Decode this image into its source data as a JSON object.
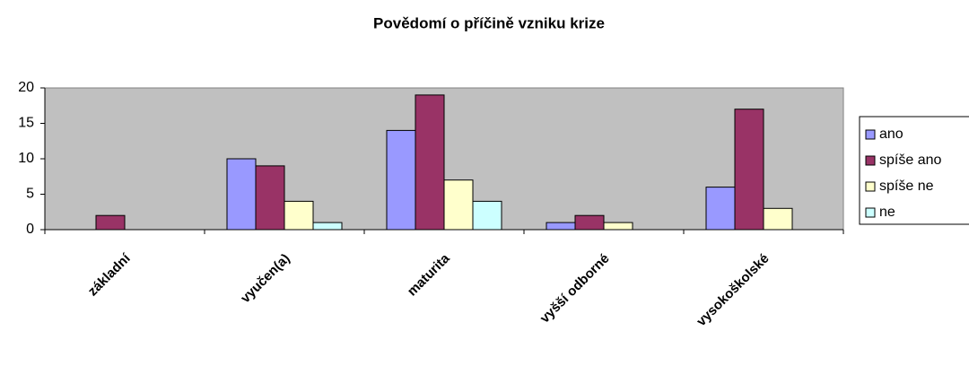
{
  "chart_data": {
    "type": "bar",
    "title": "Povědomí o příčině vzniku krize",
    "categories": [
      "základní",
      "vyučen(a)",
      "maturita",
      "vyšší odborné",
      "vysokoškolské"
    ],
    "series": [
      {
        "name": "ano",
        "color": "#9999ff",
        "values": [
          0,
          10,
          14,
          1,
          6
        ]
      },
      {
        "name": "spíše ano",
        "color": "#993366",
        "values": [
          2,
          9,
          19,
          2,
          17
        ]
      },
      {
        "name": "spíše ne",
        "color": "#ffffcc",
        "values": [
          0,
          4,
          7,
          1,
          3
        ]
      },
      {
        "name": "ne",
        "color": "#ccffff",
        "values": [
          0,
          1,
          4,
          0,
          0
        ]
      }
    ],
    "ylim": [
      0,
      20
    ],
    "yticks": [
      0,
      5,
      10,
      15,
      20
    ],
    "legend": "right"
  }
}
